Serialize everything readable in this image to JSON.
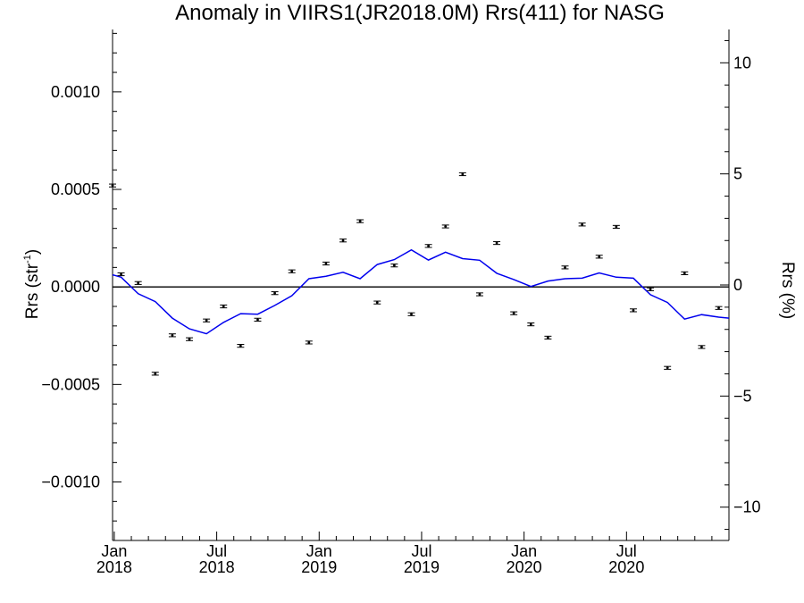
{
  "chart_data": {
    "type": "scatter",
    "title": "Anomaly in VIIRS1(JR2018.0M) Rrs(411) for NASG",
    "ylabel_left": "Rrs (str",
    "ylabel_left_sup": "-1",
    "ylabel_left_close": ")",
    "ylabel_right": "Rrs (%)",
    "y_left_range": [
      -0.0013,
      0.00132
    ],
    "y_right_range": [
      -11.5,
      11.5
    ],
    "y_left_ticks": [
      {
        "value": 0.001,
        "label": "0.0010"
      },
      {
        "value": 0.0005,
        "label": "0.0005"
      },
      {
        "value": 0.0,
        "label": "0.0000"
      },
      {
        "value": -0.0005,
        "label": "−0.0005"
      },
      {
        "value": -0.001,
        "label": "−0.0010"
      }
    ],
    "y_right_ticks": [
      {
        "value": 10,
        "label": "10"
      },
      {
        "value": 5,
        "label": "5"
      },
      {
        "value": 0,
        "label": "0"
      },
      {
        "value": -5,
        "label": "−5"
      },
      {
        "value": -10,
        "label": "−10"
      }
    ],
    "x_ticks": [
      {
        "month": 0,
        "line1": "Jan",
        "line2": "2018"
      },
      {
        "month": 6,
        "line1": "Jul",
        "line2": "2018"
      },
      {
        "month": 12,
        "line1": "Jan",
        "line2": "2019"
      },
      {
        "month": 18,
        "line1": "Jul",
        "line2": "2019"
      },
      {
        "month": 24,
        "line1": "Jan",
        "line2": "2020"
      },
      {
        "month": 30,
        "line1": "Jul",
        "line2": "2020"
      }
    ],
    "x_range_months": [
      -0.1,
      36.0
    ],
    "zero_line": true,
    "series": [
      {
        "kind": "points_with_errorbars",
        "color": "#000000",
        "points": [
          {
            "x": -0.1,
            "y": 0.00052
          },
          {
            "x": 0.4,
            "y": 6.5e-05
          },
          {
            "x": 1.4,
            "y": 2e-05
          },
          {
            "x": 2.4,
            "y": -0.000445
          },
          {
            "x": 3.4,
            "y": -0.000248
          },
          {
            "x": 4.4,
            "y": -0.000268
          },
          {
            "x": 5.4,
            "y": -0.000172
          },
          {
            "x": 6.4,
            "y": -0.0001
          },
          {
            "x": 7.4,
            "y": -0.000302
          },
          {
            "x": 8.4,
            "y": -0.000168
          },
          {
            "x": 9.4,
            "y": -3.2e-05
          },
          {
            "x": 10.4,
            "y": 8e-05
          },
          {
            "x": 11.4,
            "y": -0.000285
          },
          {
            "x": 12.4,
            "y": 0.00012
          },
          {
            "x": 13.4,
            "y": 0.000238
          },
          {
            "x": 14.4,
            "y": 0.000337
          },
          {
            "x": 15.4,
            "y": -8e-05
          },
          {
            "x": 16.4,
            "y": 0.00011
          },
          {
            "x": 17.4,
            "y": -0.00014
          },
          {
            "x": 18.4,
            "y": 0.00021
          },
          {
            "x": 19.4,
            "y": 0.00031
          },
          {
            "x": 20.4,
            "y": 0.000578
          },
          {
            "x": 21.4,
            "y": -3.8e-05
          },
          {
            "x": 22.4,
            "y": 0.000225
          },
          {
            "x": 23.4,
            "y": -0.000135
          },
          {
            "x": 24.4,
            "y": -0.000192
          },
          {
            "x": 25.4,
            "y": -0.00026
          },
          {
            "x": 26.4,
            "y": 0.0001
          },
          {
            "x": 27.4,
            "y": 0.00032
          },
          {
            "x": 28.4,
            "y": 0.000155
          },
          {
            "x": 29.4,
            "y": 0.000308
          },
          {
            "x": 30.4,
            "y": -0.00012
          },
          {
            "x": 31.4,
            "y": -1.2e-05
          },
          {
            "x": 32.4,
            "y": -0.000415
          },
          {
            "x": 33.4,
            "y": 7e-05
          },
          {
            "x": 34.4,
            "y": -0.000308
          },
          {
            "x": 35.4,
            "y": -0.000108
          }
        ]
      },
      {
        "kind": "line",
        "color": "#0000ee",
        "points": [
          {
            "x": -0.1,
            "y": 6.2e-05
          },
          {
            "x": 0.4,
            "y": 5e-05
          },
          {
            "x": 1.4,
            "y": -3.5e-05
          },
          {
            "x": 2.4,
            "y": -7.5e-05
          },
          {
            "x": 3.4,
            "y": -0.00016
          },
          {
            "x": 4.4,
            "y": -0.000215
          },
          {
            "x": 5.4,
            "y": -0.00024
          },
          {
            "x": 6.4,
            "y": -0.000182
          },
          {
            "x": 7.4,
            "y": -0.000137
          },
          {
            "x": 8.4,
            "y": -0.00014
          },
          {
            "x": 9.4,
            "y": -9.5e-05
          },
          {
            "x": 10.4,
            "y": -4.5e-05
          },
          {
            "x": 11.4,
            "y": 4.2e-05
          },
          {
            "x": 12.4,
            "y": 5.5e-05
          },
          {
            "x": 13.4,
            "y": 7.5e-05
          },
          {
            "x": 14.4,
            "y": 4.2e-05
          },
          {
            "x": 15.4,
            "y": 0.000115
          },
          {
            "x": 16.4,
            "y": 0.00014
          },
          {
            "x": 17.4,
            "y": 0.00019
          },
          {
            "x": 18.4,
            "y": 0.000138
          },
          {
            "x": 19.4,
            "y": 0.000178
          },
          {
            "x": 20.4,
            "y": 0.000145
          },
          {
            "x": 21.4,
            "y": 0.000137
          },
          {
            "x": 22.4,
            "y": 7e-05
          },
          {
            "x": 23.4,
            "y": 3.8e-05
          },
          {
            "x": 24.4,
            "y": 2e-06
          },
          {
            "x": 25.4,
            "y": 3e-05
          },
          {
            "x": 26.4,
            "y": 4.2e-05
          },
          {
            "x": 27.4,
            "y": 4.5e-05
          },
          {
            "x": 28.4,
            "y": 7.2e-05
          },
          {
            "x": 29.4,
            "y": 5e-05
          },
          {
            "x": 30.4,
            "y": 4.5e-05
          },
          {
            "x": 31.4,
            "y": -4e-05
          },
          {
            "x": 32.4,
            "y": -8e-05
          },
          {
            "x": 33.4,
            "y": -0.000165
          },
          {
            "x": 34.4,
            "y": -0.000142
          },
          {
            "x": 35.4,
            "y": -0.000155
          },
          {
            "x": 36.0,
            "y": -0.00016
          }
        ]
      }
    ],
    "grid": false,
    "legend": "none"
  }
}
